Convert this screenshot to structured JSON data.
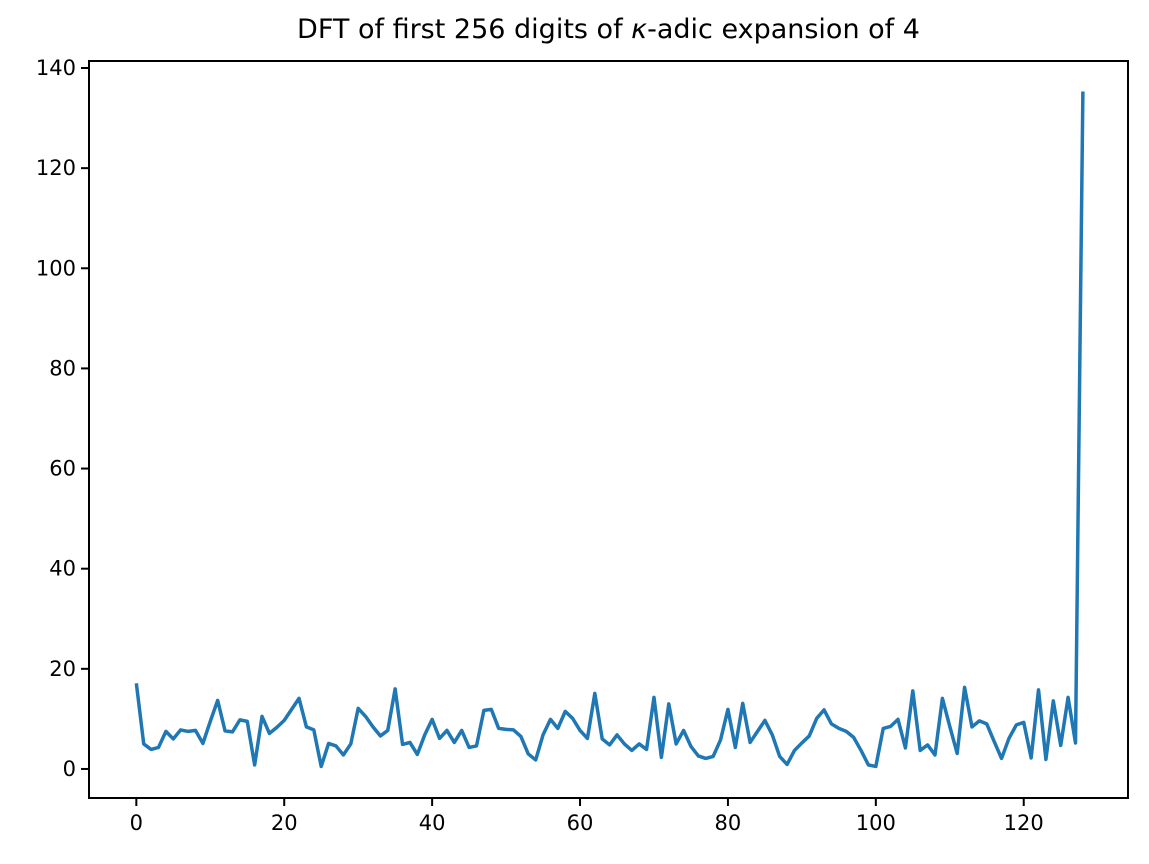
{
  "figure": {
    "background_color": "#ffffff"
  },
  "chart_data": {
    "type": "line",
    "title": "DFT of first 256 digits of κ-adic expansion of 4",
    "title_parts": {
      "prefix": "DFT of first 256 digits of ",
      "kappa": "κ",
      "suffix": "-adic expansion of 4"
    },
    "xlabel": "",
    "ylabel": "",
    "line_color": "#1f77b4",
    "axis_color": "#000000",
    "grid": false,
    "legend": null,
    "x_start": 0,
    "x_step": 1,
    "n_points": 129,
    "xticks": [
      0,
      20,
      40,
      60,
      80,
      100,
      120
    ],
    "yticks": [
      0,
      20,
      40,
      60,
      80,
      100,
      120,
      140
    ],
    "xlim": [
      -6.4,
      134.1
    ],
    "ylim": [
      -5.8,
      141.4
    ],
    "peak": {
      "x": 128,
      "value": 135.3
    },
    "values": [
      17.1,
      5.0,
      3.9,
      4.3,
      7.5,
      6.0,
      7.8,
      7.5,
      7.7,
      5.1,
      9.5,
      13.7,
      7.6,
      7.4,
      9.8,
      9.5,
      0.8,
      10.5,
      7.1,
      8.3,
      9.7,
      11.9,
      14.1,
      8.4,
      7.8,
      0.5,
      5.1,
      4.6,
      2.8,
      5.0,
      12.1,
      10.5,
      8.4,
      6.6,
      7.7,
      16.0,
      4.9,
      5.3,
      2.9,
      6.8,
      9.9,
      6.1,
      7.7,
      5.3,
      7.7,
      4.3,
      4.6,
      11.7,
      11.9,
      8.1,
      7.9,
      7.8,
      6.5,
      3.0,
      1.8,
      6.8,
      9.9,
      8.1,
      11.5,
      10.1,
      7.7,
      6.1,
      15.1,
      6.0,
      4.8,
      6.8,
      5.0,
      3.7,
      5.0,
      3.9,
      14.3,
      2.3,
      13.0,
      5.0,
      7.7,
      4.5,
      2.6,
      2.1,
      2.5,
      5.8,
      11.9,
      4.3,
      13.1,
      5.3,
      7.5,
      9.7,
      6.8,
      2.5,
      0.9,
      3.7,
      5.2,
      6.6,
      10.1,
      11.8,
      9.0,
      8.1,
      7.5,
      6.3,
      3.7,
      0.8,
      0.5,
      8.1,
      8.5,
      9.9,
      4.2,
      15.6,
      3.7,
      4.8,
      2.8,
      14.1,
      8.5,
      3.1,
      16.3,
      8.4,
      9.6,
      9.0,
      5.5,
      2.1,
      6.1,
      8.8,
      9.3,
      2.2,
      15.8,
      1.9,
      13.6,
      4.7,
      14.3,
      5.2,
      135.3
    ]
  }
}
